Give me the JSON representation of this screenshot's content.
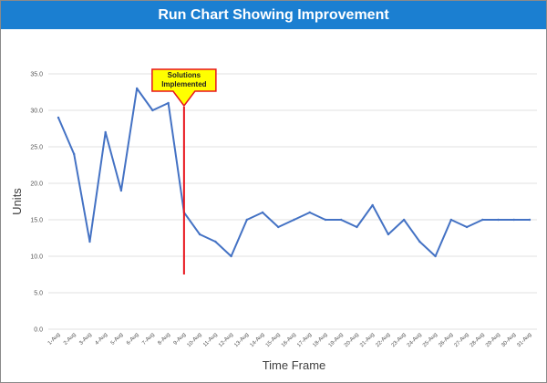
{
  "title": "Run Chart Showing Improvement",
  "chart_data": {
    "type": "line",
    "title": "Run Chart Showing Improvement",
    "xlabel": "Time Frame",
    "ylabel": "Units",
    "ylim": [
      0,
      35
    ],
    "y_ticks": [
      "0.0",
      "5.0",
      "10.0",
      "15.0",
      "20.0",
      "25.0",
      "30.0",
      "35.0"
    ],
    "grid": true,
    "legend": "none",
    "line_color": "#4472c4",
    "categories": [
      "1-Aug",
      "2-Aug",
      "3-Aug",
      "4-Aug",
      "5-Aug",
      "6-Aug",
      "7-Aug",
      "8-Aug",
      "9-Aug",
      "10-Aug",
      "11-Aug",
      "12-Aug",
      "13-Aug",
      "14-Aug",
      "15-Aug",
      "16-Aug",
      "17-Aug",
      "18-Aug",
      "19-Aug",
      "20-Aug",
      "21-Aug",
      "22-Aug",
      "23-Aug",
      "24-Aug",
      "25-Aug",
      "26-Aug",
      "27-Aug",
      "28-Aug",
      "29-Aug",
      "30-Aug",
      "31-Aug"
    ],
    "values": [
      29,
      24,
      12,
      27,
      19,
      33,
      30,
      31,
      16,
      13,
      12,
      10,
      15,
      16,
      14,
      15,
      16,
      15,
      15,
      14,
      17,
      13,
      15,
      12,
      10,
      15,
      14,
      15,
      15,
      15,
      15
    ],
    "annotation": {
      "text_lines": [
        "Solutions",
        "Implemented"
      ],
      "at_category": "9-Aug",
      "line_from": 7.5,
      "line_to": 30.5,
      "line_color": "#e8141c",
      "callout_fill": "#ffff00",
      "callout_border": "#e8141c"
    }
  }
}
